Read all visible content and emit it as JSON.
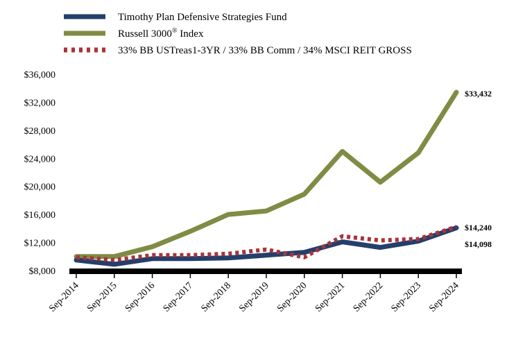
{
  "chart_data": {
    "type": "line",
    "title": "",
    "xlabel": "",
    "ylabel": "",
    "categories": [
      "Sep-2014",
      "Sep-2015",
      "Sep-2016",
      "Sep-2017",
      "Sep-2018",
      "Sep-2019",
      "Sep-2020",
      "Sep-2021",
      "Sep-2022",
      "Sep-2023",
      "Sep-2024"
    ],
    "ylim": [
      8000,
      36000
    ],
    "yticks": [
      8000,
      12000,
      16000,
      20000,
      24000,
      28000,
      32000,
      36000
    ],
    "ytick_labels": [
      "$8,000",
      "$12,000",
      "$16,000",
      "$20,000",
      "$24,000",
      "$28,000",
      "$32,000",
      "$36,000"
    ],
    "legend_position": "top-left",
    "series": [
      {
        "name": "Timothy Plan Defensive Strategies Fund",
        "color": "#243f6b",
        "style": "solid",
        "values": [
          9500,
          8900,
          9700,
          9700,
          9800,
          10200,
          10600,
          12100,
          11300,
          12200,
          14098
        ],
        "end_label": "$14,098"
      },
      {
        "name": "Russell 3000",
        "superscript": "®",
        "name_suffix": " Index",
        "color": "#7f8c44",
        "style": "solid",
        "values": [
          10000,
          10000,
          11400,
          13600,
          16000,
          16500,
          18900,
          25000,
          20600,
          24800,
          33432
        ],
        "end_label": "$33,432"
      },
      {
        "name": "33% BB USTreas1-3YR / 33% BB Comm / 34% MSCI REIT GROSS",
        "color": "#a8343a",
        "style": "dotted",
        "values": [
          9900,
          9500,
          10200,
          10200,
          10400,
          11000,
          9900,
          12900,
          12300,
          12500,
          14240
        ],
        "end_label": "$14,240"
      }
    ]
  }
}
